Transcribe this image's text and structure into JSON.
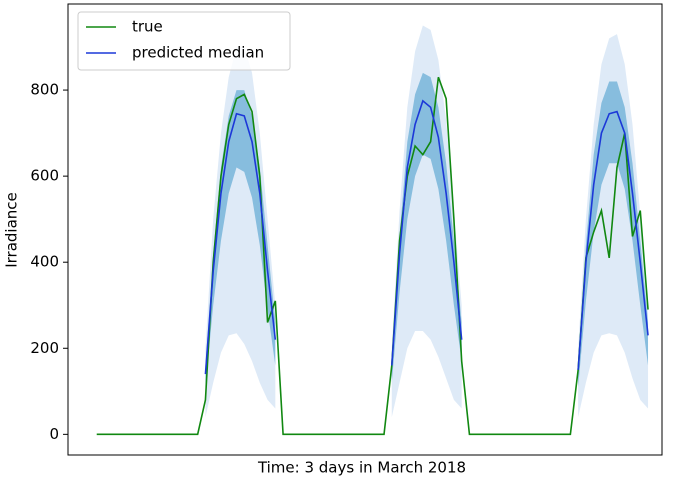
{
  "chart_data": {
    "type": "line",
    "xlabel": "Time: 3 days in March 2018",
    "ylabel": "Irradiance",
    "x": [
      0,
      1,
      2,
      3,
      4,
      5,
      6,
      7,
      8,
      9,
      10,
      11,
      12,
      13,
      14,
      15,
      16,
      17,
      18,
      19,
      20,
      21,
      22,
      23,
      24,
      25,
      26,
      27,
      28,
      29,
      30,
      31,
      32,
      33,
      34,
      35,
      36,
      37,
      38,
      39,
      40,
      41,
      42,
      43,
      44,
      45,
      46,
      47,
      48,
      49,
      50,
      51,
      52,
      53,
      54,
      55,
      56,
      57,
      58,
      59,
      60,
      61,
      62,
      63,
      64,
      65,
      66,
      67,
      68,
      69,
      70,
      71
    ],
    "xlim": [
      -3.7,
      72.8
    ],
    "ylim": [
      -48,
      1000
    ],
    "yticks": [
      0,
      200,
      400,
      600,
      800
    ],
    "legend": "upper left",
    "series": [
      {
        "name": "true",
        "color": "#118811",
        "values": [
          0,
          0,
          0,
          0,
          0,
          0,
          0,
          0,
          0,
          0,
          0,
          0,
          0,
          0,
          80,
          400,
          600,
          720,
          780,
          790,
          750,
          600,
          260,
          310,
          0,
          0,
          0,
          0,
          0,
          0,
          0,
          0,
          0,
          0,
          0,
          0,
          0,
          0,
          160,
          450,
          600,
          670,
          650,
          680,
          830,
          780,
          500,
          170,
          0,
          0,
          0,
          0,
          0,
          0,
          0,
          0,
          0,
          0,
          0,
          0,
          0,
          0,
          150,
          410,
          470,
          520,
          410,
          620,
          700,
          460,
          520,
          290
        ]
      },
      {
        "name": "predicted median",
        "color": "#1c38d8",
        "values": [
          null,
          null,
          null,
          null,
          null,
          null,
          null,
          null,
          null,
          null,
          null,
          null,
          null,
          null,
          140,
          380,
          560,
          680,
          745,
          740,
          680,
          560,
          380,
          220,
          null,
          null,
          null,
          null,
          null,
          null,
          null,
          null,
          null,
          null,
          null,
          null,
          null,
          null,
          160,
          420,
          620,
          720,
          775,
          760,
          690,
          560,
          400,
          220,
          null,
          null,
          null,
          null,
          null,
          null,
          null,
          null,
          null,
          null,
          null,
          null,
          null,
          null,
          150,
          400,
          580,
          700,
          745,
          750,
          700,
          560,
          400,
          230
        ]
      }
    ],
    "bands": [
      {
        "color": "#d3e3f4",
        "lower": [
          null,
          null,
          null,
          null,
          null,
          null,
          null,
          null,
          null,
          null,
          null,
          null,
          null,
          null,
          40,
          120,
          190,
          230,
          235,
          210,
          170,
          120,
          80,
          60,
          null,
          null,
          null,
          null,
          null,
          null,
          null,
          null,
          null,
          null,
          null,
          null,
          null,
          null,
          40,
          120,
          200,
          240,
          240,
          220,
          180,
          130,
          80,
          60,
          null,
          null,
          null,
          null,
          null,
          null,
          null,
          null,
          null,
          null,
          null,
          null,
          null,
          null,
          40,
          120,
          190,
          230,
          235,
          230,
          190,
          130,
          80,
          60
        ],
        "upper": [
          null,
          null,
          null,
          null,
          null,
          null,
          null,
          null,
          null,
          null,
          null,
          null,
          null,
          null,
          200,
          500,
          700,
          830,
          900,
          900,
          840,
          700,
          500,
          300,
          null,
          null,
          null,
          null,
          null,
          null,
          null,
          null,
          null,
          null,
          null,
          null,
          null,
          null,
          200,
          520,
          760,
          890,
          950,
          940,
          870,
          730,
          520,
          300,
          null,
          null,
          null,
          null,
          null,
          null,
          null,
          null,
          null,
          null,
          null,
          null,
          null,
          null,
          200,
          500,
          720,
          860,
          920,
          930,
          860,
          720,
          510,
          300
        ]
      },
      {
        "color": "#6aaed6",
        "lower": [
          null,
          null,
          null,
          null,
          null,
          null,
          null,
          null,
          null,
          null,
          null,
          null,
          null,
          null,
          110,
          300,
          450,
          560,
          620,
          610,
          550,
          440,
          290,
          160,
          null,
          null,
          null,
          null,
          null,
          null,
          null,
          null,
          null,
          null,
          null,
          null,
          null,
          null,
          120,
          330,
          500,
          600,
          650,
          640,
          570,
          450,
          300,
          170,
          null,
          null,
          null,
          null,
          null,
          null,
          null,
          null,
          null,
          null,
          null,
          null,
          null,
          null,
          110,
          310,
          470,
          580,
          630,
          630,
          570,
          450,
          300,
          160
        ],
        "upper": [
          null,
          null,
          null,
          null,
          null,
          null,
          null,
          null,
          null,
          null,
          null,
          null,
          null,
          null,
          160,
          420,
          620,
          740,
          800,
          800,
          740,
          620,
          440,
          260,
          null,
          null,
          null,
          null,
          null,
          null,
          null,
          null,
          null,
          null,
          null,
          null,
          null,
          null,
          180,
          460,
          680,
          790,
          840,
          830,
          760,
          630,
          450,
          260,
          null,
          null,
          null,
          null,
          null,
          null,
          null,
          null,
          null,
          null,
          null,
          null,
          null,
          null,
          170,
          440,
          650,
          770,
          820,
          820,
          760,
          630,
          450,
          260
        ]
      }
    ]
  }
}
